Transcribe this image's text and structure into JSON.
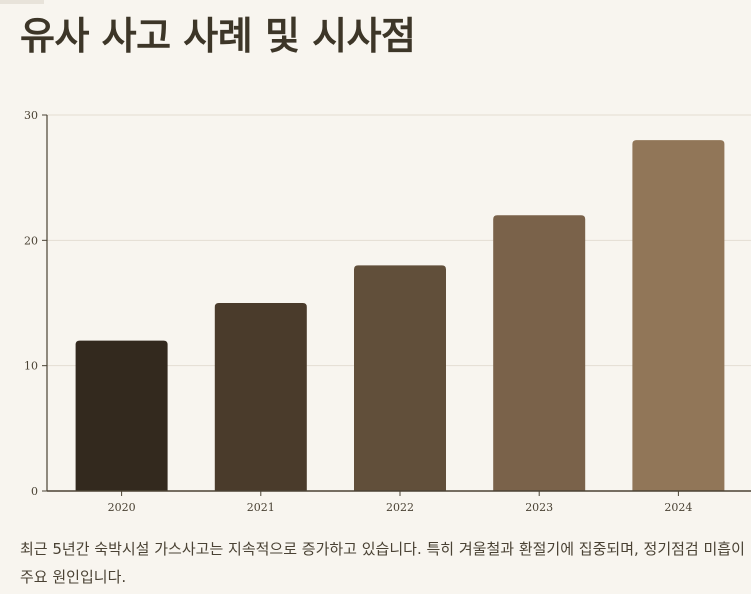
{
  "page": {
    "title": "유사 사고 사례 및 시사점",
    "caption": "최근 5년간 숙박시설 가스사고는 지속적으로 증가하고 있습니다. 특히 겨울철과 환절기에 집중되며, 정기점검 미흡이 주요 원인입니다."
  },
  "chart_data": {
    "type": "bar",
    "title": "",
    "xlabel": "",
    "ylabel": "",
    "categories": [
      "2020",
      "2021",
      "2022",
      "2023",
      "2024"
    ],
    "values": [
      12,
      15,
      18,
      22,
      28
    ],
    "ylim": [
      0,
      30
    ],
    "yticks": [
      0,
      10,
      20,
      30
    ],
    "grid": true,
    "legend": "none",
    "colors": [
      "#33291e",
      "#4a3b2b",
      "#614f3a",
      "#7a624a",
      "#917658"
    ]
  }
}
